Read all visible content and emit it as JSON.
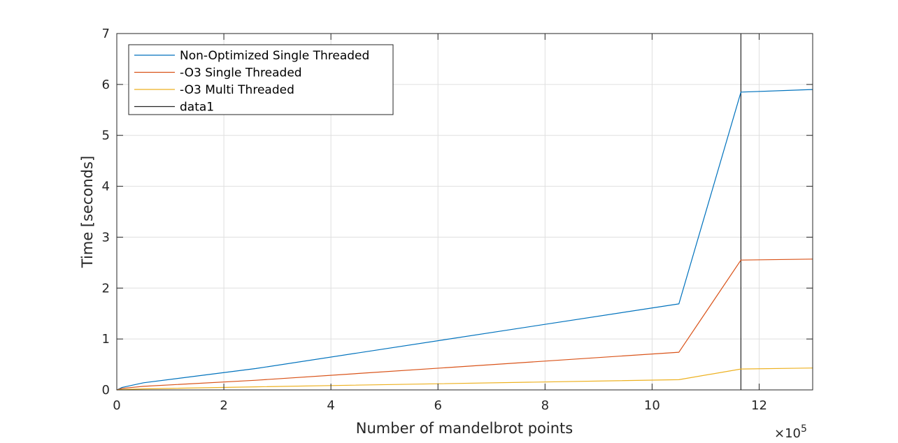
{
  "chart_data": {
    "type": "line",
    "title": "",
    "xlabel": "Number of mandelbrot points",
    "ylabel": "Time [seconds]",
    "x_exponent_label": "×10",
    "x_exponent_power": "5",
    "xlim": [
      0,
      13
    ],
    "ylim": [
      0,
      7
    ],
    "x_ticks": [
      0,
      2,
      4,
      6,
      8,
      10,
      12
    ],
    "x_tick_labels": [
      "0",
      "2",
      "4",
      "6",
      "8",
      "10",
      "12"
    ],
    "y_ticks": [
      0,
      1,
      2,
      3,
      4,
      5,
      6,
      7
    ],
    "y_tick_labels": [
      "0",
      "1",
      "2",
      "3",
      "4",
      "5",
      "6",
      "7"
    ],
    "grid": true,
    "legend_position": "top-left",
    "series": [
      {
        "name": "Non-Optimized Single Threaded",
        "color": "#0072BD",
        "x": [
          0,
          0.1,
          0.5,
          2.6,
          10.5,
          11.66,
          13
        ],
        "y": [
          0,
          0.05,
          0.14,
          0.42,
          1.69,
          5.85,
          5.9
        ]
      },
      {
        "name": "-O3 Single Threaded",
        "color": "#D95319",
        "x": [
          0,
          0.1,
          0.5,
          2.6,
          10.5,
          11.66,
          13
        ],
        "y": [
          0,
          0.03,
          0.07,
          0.19,
          0.74,
          2.55,
          2.57
        ]
      },
      {
        "name": "-O3 Multi Threaded",
        "color": "#EDB120",
        "x": [
          0,
          0.1,
          0.5,
          2.6,
          10.5,
          11.66,
          13
        ],
        "y": [
          0,
          0.01,
          0.02,
          0.06,
          0.2,
          0.41,
          0.43
        ]
      },
      {
        "name": "data1",
        "color": "#262626",
        "x": [
          11.66,
          11.66
        ],
        "y": [
          0,
          7
        ]
      }
    ]
  }
}
